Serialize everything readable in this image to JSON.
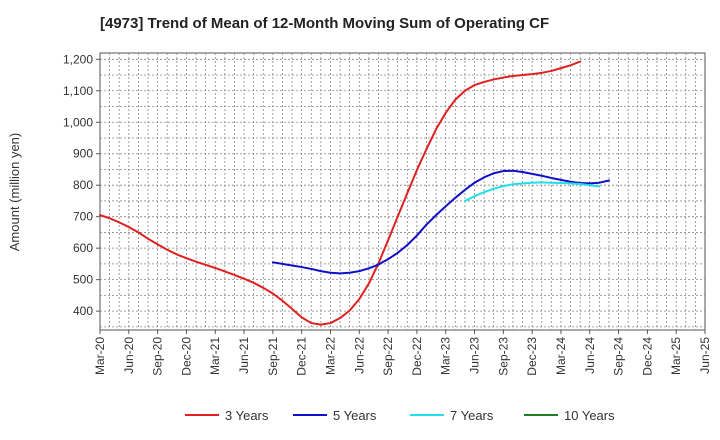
{
  "chart_data": {
    "type": "line",
    "title": "[4973]  Trend of Mean of 12-Month Moving Sum of Operating CF",
    "xlabel": "",
    "ylabel": "Amount (million yen)",
    "ylim": [
      340,
      1220
    ],
    "yticks": [
      400,
      500,
      600,
      700,
      800,
      900,
      1000,
      1100,
      1200
    ],
    "ytick_labels": [
      "400",
      "500",
      "600",
      "700",
      "800",
      "900",
      "1,000",
      "1,100",
      "1,200"
    ],
    "xticks": [
      "Mar-20",
      "Jun-20",
      "Sep-20",
      "Dec-20",
      "Mar-21",
      "Jun-21",
      "Sep-21",
      "Dec-21",
      "Mar-22",
      "Jun-22",
      "Sep-22",
      "Dec-22",
      "Mar-23",
      "Jun-23",
      "Sep-23",
      "Dec-23",
      "Mar-24",
      "Jun-24",
      "Sep-24",
      "Dec-24",
      "Mar-25",
      "Jun-25"
    ],
    "grid": true,
    "legend_position": "bottom",
    "series": [
      {
        "name": "3 Years",
        "color": "#e02020",
        "start_index": 0,
        "values": [
          705,
          695,
          682,
          667,
          650,
          630,
          612,
          595,
          580,
          568,
          557,
          547,
          537,
          526,
          515,
          503,
          490,
          474,
          456,
          433,
          407,
          380,
          362,
          357,
          362,
          378,
          402,
          438,
          488,
          552,
          625,
          700,
          775,
          848,
          915,
          978,
          1030,
          1072,
          1100,
          1118,
          1128,
          1136,
          1142,
          1147,
          1150,
          1153,
          1157,
          1163,
          1172,
          1181,
          1193
        ]
      },
      {
        "name": "5 Years",
        "color": "#1010c8",
        "start_index": 18,
        "values": [
          555,
          550,
          545,
          540,
          534,
          527,
          522,
          520,
          522,
          527,
          536,
          548,
          565,
          585,
          610,
          640,
          675,
          705,
          733,
          760,
          785,
          808,
          825,
          838,
          845,
          846,
          842,
          836,
          830,
          823,
          817,
          811,
          807,
          806,
          808,
          815
        ]
      },
      {
        "name": "7 Years",
        "color": "#20e0e8",
        "start_index": 38,
        "values": [
          750,
          765,
          778,
          789,
          797,
          803,
          806,
          808,
          809,
          808,
          807,
          806,
          804,
          800,
          796
        ]
      },
      {
        "name": "10 Years",
        "color": "#208020",
        "start_index": 0,
        "values": []
      }
    ]
  }
}
